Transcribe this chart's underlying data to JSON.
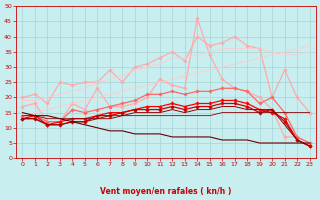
{
  "xlabel": "Vent moyen/en rafales ( kn/h )",
  "xlim": [
    -0.5,
    23.5
  ],
  "ylim": [
    0,
    50
  ],
  "yticks": [
    0,
    5,
    10,
    15,
    20,
    25,
    30,
    35,
    40,
    45,
    50
  ],
  "xticks": [
    0,
    1,
    2,
    3,
    4,
    5,
    6,
    7,
    8,
    9,
    10,
    11,
    12,
    13,
    14,
    15,
    16,
    17,
    18,
    19,
    20,
    21,
    22,
    23
  ],
  "background_color": "#c8eef0",
  "grid_color": "#a0cece",
  "series": [
    {
      "x": [
        0,
        1,
        2,
        3,
        4,
        5,
        6,
        7,
        8,
        9,
        10,
        11,
        12,
        13,
        14,
        15,
        16,
        17,
        18,
        19,
        20,
        21,
        22,
        23
      ],
      "y": [
        20,
        21,
        18,
        25,
        24,
        25,
        25,
        29,
        25,
        30,
        31,
        33,
        35,
        32,
        40,
        37,
        38,
        40,
        37,
        36,
        20,
        29,
        20,
        15
      ],
      "color": "#ffaaaa",
      "marker": "D",
      "markersize": 1.8,
      "linewidth": 0.9
    },
    {
      "x": [
        0,
        1,
        2,
        3,
        4,
        5,
        6,
        7,
        8,
        9,
        10,
        11,
        12,
        13,
        14,
        15,
        16,
        17,
        18,
        19,
        20,
        21,
        22,
        23
      ],
      "y": [
        17,
        18,
        12,
        12,
        18,
        16,
        23,
        17,
        17,
        18,
        20,
        26,
        24,
        23,
        46,
        34,
        26,
        23,
        22,
        20,
        16,
        7,
        7,
        5
      ],
      "color": "#ffaaaa",
      "marker": "D",
      "markersize": 1.8,
      "linewidth": 0.9
    },
    {
      "x": [
        0,
        1,
        2,
        3,
        4,
        5,
        6,
        7,
        8,
        9,
        10,
        11,
        12,
        13,
        14,
        15,
        16,
        17,
        18,
        19,
        20,
        21,
        22,
        23
      ],
      "y": [
        14,
        14,
        12,
        12,
        16,
        15,
        16,
        17,
        18,
        19,
        21,
        21,
        22,
        21,
        22,
        22,
        23,
        23,
        22,
        18,
        20,
        15,
        7,
        5
      ],
      "color": "#ff6666",
      "marker": "D",
      "markersize": 1.8,
      "linewidth": 0.9
    },
    {
      "x": [
        0,
        1,
        2,
        3,
        4,
        5,
        6,
        7,
        8,
        9,
        10,
        11,
        12,
        13,
        14,
        15,
        16,
        17,
        18,
        19,
        20,
        21,
        22,
        23
      ],
      "y": [
        13,
        14,
        11,
        12,
        13,
        13,
        14,
        15,
        15,
        16,
        17,
        17,
        18,
        17,
        18,
        18,
        19,
        19,
        18,
        16,
        15,
        13,
        6,
        4
      ],
      "color": "#ff0000",
      "marker": "D",
      "markersize": 1.8,
      "linewidth": 0.9
    },
    {
      "x": [
        0,
        1,
        2,
        3,
        4,
        5,
        6,
        7,
        8,
        9,
        10,
        11,
        12,
        13,
        14,
        15,
        16,
        17,
        18,
        19,
        20,
        21,
        22,
        23
      ],
      "y": [
        13,
        13,
        11,
        11,
        12,
        12,
        14,
        14,
        15,
        16,
        16,
        16,
        17,
        16,
        17,
        17,
        18,
        18,
        17,
        15,
        16,
        12,
        6,
        4
      ],
      "color": "#cc0000",
      "marker": "D",
      "markersize": 1.8,
      "linewidth": 0.9
    },
    {
      "x": [
        0,
        1,
        2,
        3,
        4,
        5,
        6,
        7,
        8,
        9,
        10,
        11,
        12,
        13,
        14,
        15,
        16,
        17,
        18,
        19,
        20,
        21,
        22,
        23
      ],
      "y": [
        13,
        13,
        11,
        11,
        12,
        12,
        13,
        13,
        14,
        15,
        15,
        15,
        16,
        15,
        16,
        16,
        17,
        17,
        16,
        16,
        16,
        11,
        6,
        4
      ],
      "color": "#990000",
      "marker": null,
      "markersize": 0,
      "linewidth": 0.7,
      "linestyle": "-"
    },
    {
      "x": [
        0,
        1,
        2,
        3,
        4,
        5,
        6,
        7,
        8,
        9,
        10,
        11,
        12,
        13,
        14,
        15,
        16,
        17,
        18,
        19,
        20,
        21,
        22,
        23
      ],
      "y": [
        19,
        19,
        20,
        21,
        22,
        23,
        25,
        26,
        27,
        29,
        30,
        31,
        33,
        33,
        34,
        35,
        36,
        36,
        36,
        36,
        35,
        34,
        34,
        35
      ],
      "color": "#ffcccc",
      "marker": null,
      "markersize": 0,
      "linewidth": 0.7,
      "linestyle": "-"
    },
    {
      "x": [
        0,
        1,
        2,
        3,
        4,
        5,
        6,
        7,
        8,
        9,
        10,
        11,
        12,
        13,
        14,
        15,
        16,
        17,
        18,
        19,
        20,
        21,
        22,
        23
      ],
      "y": [
        14,
        15,
        16,
        17,
        18,
        19,
        20,
        21,
        22,
        23,
        24,
        25,
        26,
        27,
        28,
        29,
        30,
        31,
        32,
        33,
        34,
        35,
        36,
        37
      ],
      "color": "#ffcccc",
      "marker": null,
      "markersize": 0,
      "linewidth": 0.7,
      "linestyle": "-"
    },
    {
      "x": [
        0,
        1,
        2,
        3,
        4,
        5,
        6,
        7,
        8,
        9,
        10,
        11,
        12,
        13,
        14,
        15,
        16,
        17,
        18,
        19,
        20,
        21,
        22,
        23
      ],
      "y": [
        14,
        14,
        13,
        13,
        13,
        13,
        13,
        14,
        14,
        14,
        14,
        14,
        14,
        14,
        14,
        14,
        15,
        15,
        15,
        15,
        15,
        15,
        15,
        15
      ],
      "color": "#880000",
      "marker": null,
      "markersize": 0,
      "linewidth": 0.6,
      "linestyle": "-"
    },
    {
      "x": [
        0,
        1,
        2,
        3,
        4,
        5,
        6,
        7,
        8,
        9,
        10,
        11,
        12,
        13,
        14,
        15,
        16,
        17,
        18,
        19,
        20,
        21,
        22,
        23
      ],
      "y": [
        15,
        14,
        14,
        13,
        12,
        11,
        10,
        9,
        9,
        8,
        8,
        8,
        7,
        7,
        7,
        7,
        6,
        6,
        6,
        5,
        5,
        5,
        5,
        5
      ],
      "color": "#660000",
      "marker": null,
      "markersize": 0,
      "linewidth": 0.8,
      "linestyle": "-"
    }
  ],
  "arrow_angles": [
    90,
    80,
    90,
    90,
    70,
    80,
    70,
    60,
    55,
    50,
    50,
    50,
    45,
    45,
    45,
    45,
    40,
    40,
    35,
    10,
    40,
    45,
    10,
    45
  ],
  "arrow_color": "#cc0000"
}
